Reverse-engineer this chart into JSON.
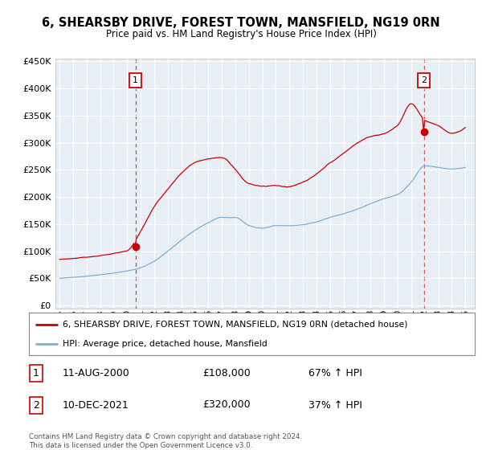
{
  "title": "6, SHEARSBY DRIVE, FOREST TOWN, MANSFIELD, NG19 0RN",
  "subtitle": "Price paid vs. HM Land Registry's House Price Index (HPI)",
  "legend_line1": "6, SHEARSBY DRIVE, FOREST TOWN, MANSFIELD, NG19 0RN (detached house)",
  "legend_line2": "HPI: Average price, detached house, Mansfield",
  "sale1_label": "1",
  "sale1_date": "11-AUG-2000",
  "sale1_price": 108000,
  "sale1_hpi_text": "67% ↑ HPI",
  "sale2_label": "2",
  "sale2_date": "10-DEC-2021",
  "sale2_price": 320000,
  "sale2_hpi_text": "37% ↑ HPI",
  "footer1": "Contains HM Land Registry data © Crown copyright and database right 2024.",
  "footer2": "This data is licensed under the Open Government Licence v3.0.",
  "red_color": "#cc0000",
  "blue_color": "#7ab0d4",
  "plot_bg": "#e8eef5",
  "grid_color": "#ffffff",
  "ylim_min": 0,
  "ylim_max": 450000,
  "ytick_step": 50000,
  "sale1_x": 2000.62,
  "sale2_x": 2021.95,
  "hpi_waypoints_x": [
    1995,
    1996,
    1997,
    1998,
    1999,
    2000,
    2001,
    2002,
    2003,
    2004,
    2005,
    2006,
    2007,
    2008,
    2009,
    2010,
    2011,
    2012,
    2013,
    2014,
    2015,
    2016,
    2017,
    2018,
    2019,
    2020,
    2021,
    2022,
    2023,
    2024,
    2025
  ],
  "hpi_waypoints_y": [
    50000,
    52000,
    54000,
    57000,
    60000,
    64000,
    70000,
    82000,
    100000,
    120000,
    138000,
    152000,
    163000,
    163000,
    148000,
    143000,
    148000,
    148000,
    150000,
    155000,
    163000,
    170000,
    178000,
    188000,
    198000,
    205000,
    228000,
    258000,
    255000,
    252000,
    255000
  ],
  "red_waypoints_x": [
    1995,
    1996,
    1997,
    1998,
    1999,
    2000,
    2001,
    2002,
    2003,
    2004,
    2005,
    2006,
    2007,
    2008,
    2009,
    2010,
    2011,
    2012,
    2013,
    2014,
    2015,
    2016,
    2017,
    2018,
    2019,
    2020,
    2021,
    2022,
    2023,
    2024,
    2025
  ],
  "red_waypoints_y": [
    85000,
    87000,
    90000,
    93000,
    97000,
    103000,
    140000,
    185000,
    218000,
    248000,
    268000,
    275000,
    278000,
    258000,
    232000,
    228000,
    230000,
    228000,
    235000,
    248000,
    268000,
    285000,
    303000,
    315000,
    320000,
    335000,
    375000,
    345000,
    335000,
    320000,
    330000
  ]
}
